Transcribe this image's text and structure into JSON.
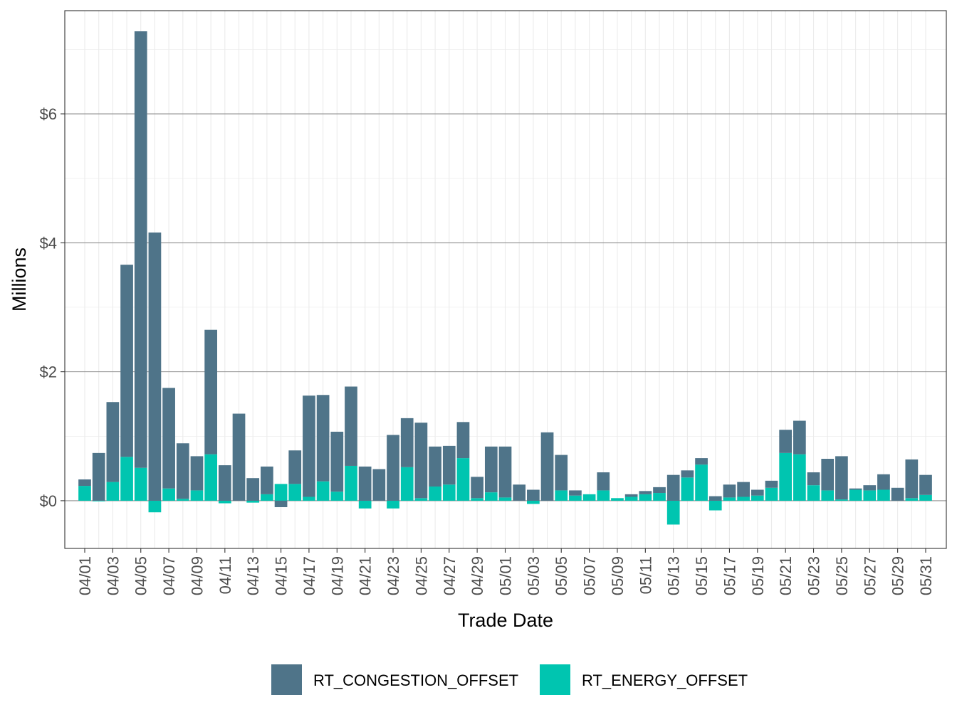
{
  "chart_data": {
    "type": "bar",
    "stacking": "stacked",
    "xlabel": "Trade Date",
    "ylabel": "Millions",
    "ylim": [
      -0.74,
      7.6
    ],
    "y_ticks": [
      0,
      2,
      4,
      6
    ],
    "y_tick_labels": [
      "$0",
      "$2",
      "$4",
      "$6"
    ],
    "grid": true,
    "legend_position": "bottom",
    "categories": [
      "04/01",
      "04/02",
      "04/03",
      "04/04",
      "04/05",
      "04/06",
      "04/07",
      "04/08",
      "04/09",
      "04/10",
      "04/11",
      "04/12",
      "04/13",
      "04/14",
      "04/15",
      "04/16",
      "04/17",
      "04/18",
      "04/19",
      "04/20",
      "04/21",
      "04/22",
      "04/23",
      "04/24",
      "04/25",
      "04/26",
      "04/27",
      "04/28",
      "04/29",
      "04/30",
      "05/01",
      "05/02",
      "05/03",
      "05/04",
      "05/05",
      "05/06",
      "05/07",
      "05/08",
      "05/09",
      "05/10",
      "05/11",
      "05/12",
      "05/13",
      "05/14",
      "05/15",
      "05/16",
      "05/17",
      "05/18",
      "05/19",
      "05/20",
      "05/21",
      "05/22",
      "05/23",
      "05/24",
      "05/25",
      "05/26",
      "05/27",
      "05/28",
      "05/29",
      "05/30",
      "05/31"
    ],
    "x_tick_labels": [
      "04/01",
      "04/03",
      "04/05",
      "04/07",
      "04/09",
      "04/11",
      "04/13",
      "04/15",
      "04/17",
      "04/19",
      "04/21",
      "04/23",
      "04/25",
      "04/27",
      "04/29",
      "05/01",
      "05/03",
      "05/05",
      "05/07",
      "05/09",
      "05/11",
      "05/13",
      "05/15",
      "05/17",
      "05/19",
      "05/21",
      "05/23",
      "05/25",
      "05/27",
      "05/29",
      "05/31"
    ],
    "series": [
      {
        "name": "RT_CONGESTION_OFFSET",
        "color": "#4F7489",
        "values": [
          0.1,
          0.74,
          1.24,
          2.98,
          6.77,
          4.16,
          1.56,
          0.86,
          0.53,
          1.93,
          0.55,
          1.35,
          0.35,
          0.43,
          -0.1,
          0.52,
          1.57,
          1.34,
          0.93,
          1.23,
          0.53,
          0.49,
          1.02,
          0.76,
          1.17,
          0.62,
          0.6,
          0.56,
          0.33,
          0.71,
          0.79,
          0.25,
          0.17,
          1.06,
          0.55,
          0.08,
          0.0,
          0.28,
          0.0,
          0.04,
          0.05,
          0.09,
          0.4,
          0.11,
          0.1,
          0.07,
          0.2,
          0.23,
          0.09,
          0.11,
          0.36,
          0.52,
          0.2,
          0.49,
          0.67,
          0.02,
          0.08,
          0.24,
          0.2,
          0.6,
          0.31
        ]
      },
      {
        "name": "RT_ENERGY_OFFSET",
        "color": "#00C5B0",
        "values": [
          0.23,
          -0.01,
          0.29,
          0.68,
          0.51,
          -0.18,
          0.19,
          0.03,
          0.16,
          0.72,
          -0.04,
          0.0,
          -0.03,
          0.1,
          0.26,
          0.26,
          0.06,
          0.3,
          0.14,
          0.54,
          -0.12,
          0.0,
          -0.12,
          0.52,
          0.04,
          0.22,
          0.25,
          0.66,
          0.04,
          0.13,
          0.05,
          0.0,
          -0.05,
          0.0,
          0.16,
          0.08,
          0.1,
          0.16,
          0.04,
          0.06,
          0.1,
          0.12,
          -0.37,
          0.36,
          0.56,
          -0.15,
          0.05,
          0.06,
          0.08,
          0.2,
          0.74,
          0.72,
          0.24,
          0.16,
          0.02,
          0.17,
          0.16,
          0.17,
          0.0,
          0.04,
          0.09
        ]
      }
    ]
  }
}
